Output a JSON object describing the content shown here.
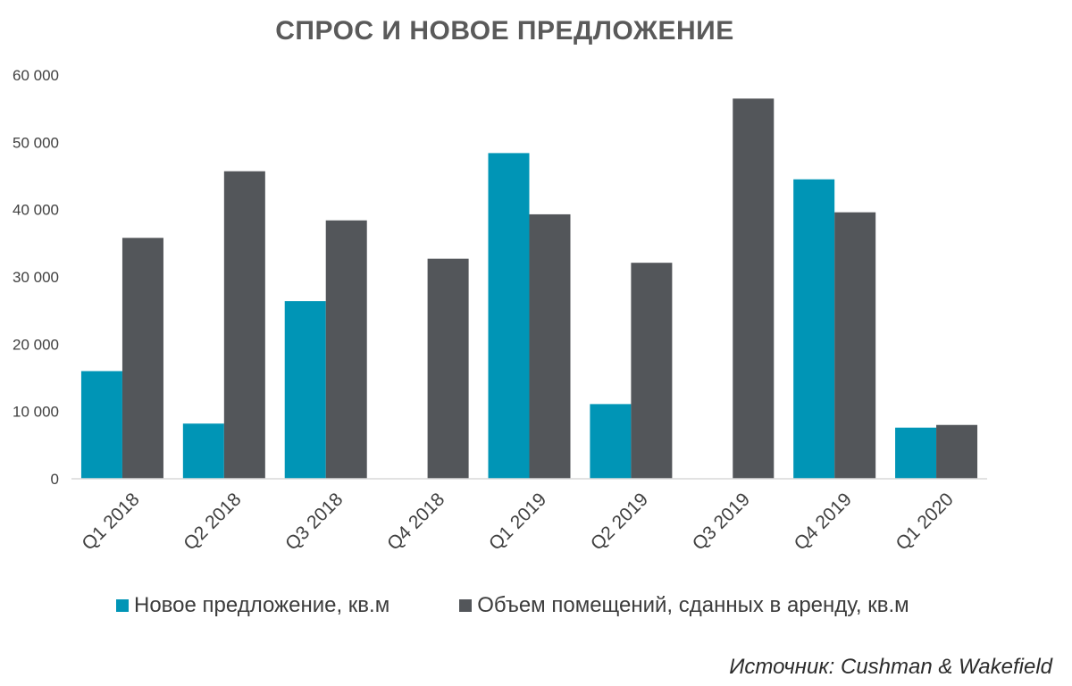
{
  "chart_data": {
    "type": "bar",
    "title": "СПРОС И НОВОЕ ПРЕДЛОЖЕНИЕ",
    "categories": [
      "Q1 2018",
      "Q2 2018",
      "Q3 2018",
      "Q4 2018",
      "Q1 2019",
      "Q2 2019",
      "Q3 2019",
      "Q4 2019",
      "Q1 2020"
    ],
    "series": [
      {
        "name": "Новое предложение, кв.м",
        "color": "#0095B6",
        "values": [
          16000,
          8200,
          26400,
          0,
          48400,
          11100,
          0,
          44500,
          7600
        ]
      },
      {
        "name": "Объем помещений, сданных в аренду, кв.м",
        "color": "#53565A",
        "values": [
          35800,
          45700,
          38400,
          32700,
          39300,
          32100,
          56500,
          39600,
          8000
        ]
      }
    ],
    "ylim": [
      0,
      60000
    ],
    "yticks": [
      0,
      10000,
      20000,
      30000,
      40000,
      50000,
      60000
    ],
    "ytick_labels": [
      "0",
      "10 000",
      "20 000",
      "30 000",
      "40 000",
      "50 000",
      "60 000"
    ],
    "grid": false,
    "legend_position": "bottom"
  },
  "source": "Источник: Cushman & Wakefield"
}
